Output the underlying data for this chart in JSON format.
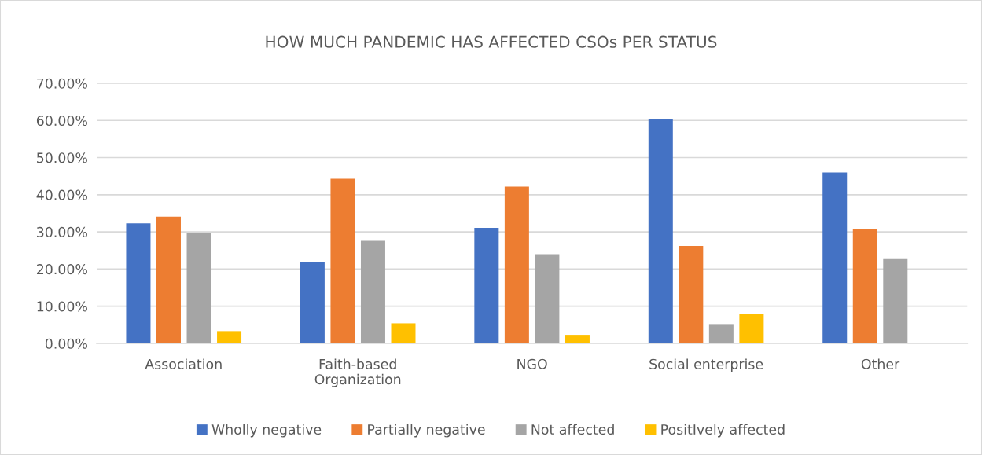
{
  "chart_data": {
    "type": "bar",
    "title": "HOW MUCH PANDEMIC HAS AFFECTED CSOs PER STATUS",
    "categories": [
      "Association",
      "Faith-based\nOrganization",
      "NGO",
      "Social enterprise",
      "Other"
    ],
    "series": [
      {
        "name": "Wholly negative",
        "color": "#4472c4",
        "values": [
          32.3,
          22.0,
          31.1,
          60.4,
          46.0
        ]
      },
      {
        "name": "Partially negative",
        "color": "#ed7d31",
        "values": [
          34.1,
          44.3,
          42.2,
          26.2,
          30.7
        ]
      },
      {
        "name": "Not affected",
        "color": "#a5a5a5",
        "values": [
          29.6,
          27.6,
          24.0,
          5.2,
          22.9
        ]
      },
      {
        "name": "PositIvely affected",
        "color": "#ffc000",
        "values": [
          3.3,
          5.4,
          2.3,
          7.8,
          0
        ]
      }
    ],
    "ylim": [
      0,
      70
    ],
    "yticks": [
      {
        "value": 0,
        "label": "0.00%"
      },
      {
        "value": 10,
        "label": "10.00%"
      },
      {
        "value": 20,
        "label": "20.00%"
      },
      {
        "value": 30,
        "label": "30.00%"
      },
      {
        "value": 40,
        "label": "40.00%"
      },
      {
        "value": 50,
        "label": "50.00%"
      },
      {
        "value": 60,
        "label": "60.00%"
      },
      {
        "value": 70,
        "label": "70.00%"
      }
    ],
    "grid": "y",
    "legend": "bottom"
  }
}
